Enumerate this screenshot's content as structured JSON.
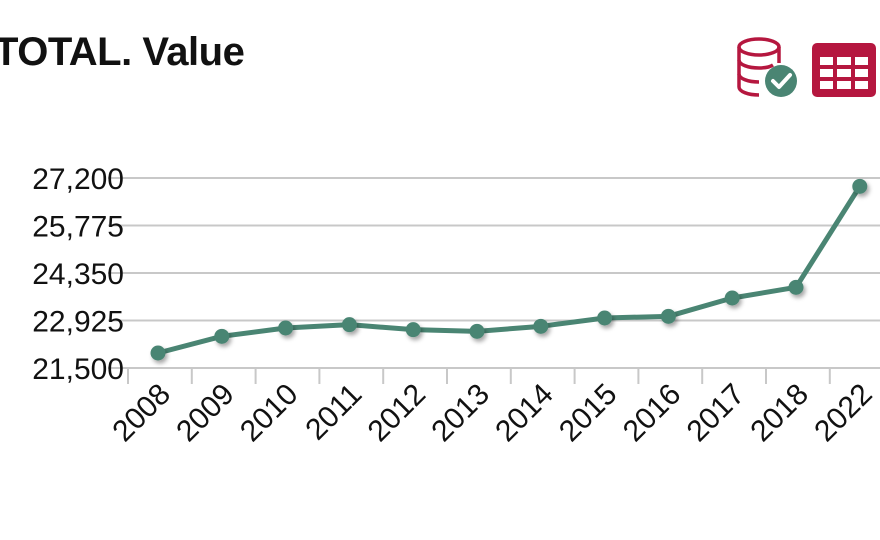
{
  "header": {
    "title": "TOTAL. Value"
  },
  "toolbar": {
    "database_icon": "database-check-icon",
    "table_icon": "table-grid-icon"
  },
  "colors": {
    "line": "#4a8573",
    "icon": "#b5173f",
    "grid": "#c8c8c8",
    "check_badge": "#4a8573"
  },
  "chart_data": {
    "type": "line",
    "title": "TOTAL. Value",
    "xlabel": "",
    "ylabel": "",
    "categories": [
      "2008",
      "2009",
      "2010",
      "2011",
      "2012",
      "2013",
      "2014",
      "2015",
      "2016",
      "2017",
      "2018",
      "2022"
    ],
    "series": [
      {
        "values": [
          21950,
          22450,
          22700,
          22800,
          22650,
          22600,
          22750,
          23000,
          23050,
          23600,
          23920,
          26950
        ]
      }
    ],
    "yticks": [
      "21,500",
      "22,925",
      "24,350",
      "25,775",
      "27,200"
    ],
    "ylim": [
      21500,
      27200
    ],
    "grid": true,
    "legend": "none"
  }
}
